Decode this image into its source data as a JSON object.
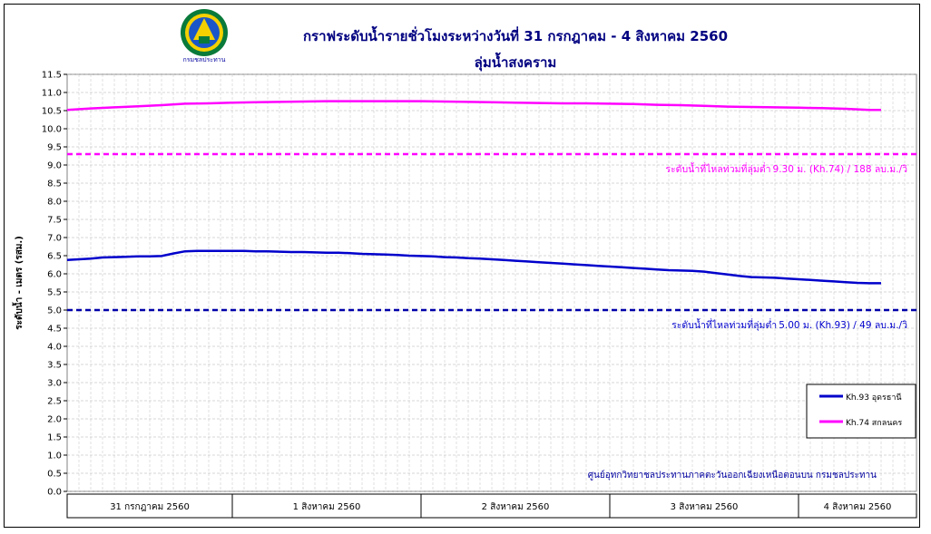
{
  "chart_data": {
    "type": "line",
    "title": "กราฟระดับน้ำรายชั่วโมงระหว่างวันที่  31 กรกฎาคม  - 4 สิงหาคม  2560",
    "subtitle": "ลุ่มน้ำสงคราม",
    "ylabel": "ระดับน้ำ - เมตร (รสม.)",
    "ylim": [
      0,
      11.5
    ],
    "yticks": [
      "0.0",
      "0.5",
      "1.0",
      "1.5",
      "2.0",
      "2.5",
      "3.0",
      "3.5",
      "4.0",
      "4.5",
      "5.0",
      "5.5",
      "6.0",
      "6.5",
      "7.0",
      "7.5",
      "8.0",
      "8.5",
      "9.0",
      "9.5",
      "10.0",
      "10.5",
      "11.0",
      "11.5"
    ],
    "grid": true,
    "legend_position": "right",
    "x_groups": [
      "31 กรกฎาคม  2560",
      "1 สิงหาคม 2560",
      "2 สิงหาคม 2560",
      "3 สิงหาคม 2560",
      "4 สิงหาคม 2560"
    ],
    "x_unit": "hour",
    "series": [
      {
        "name": "Kh.93 อุดรธานี",
        "color": "#0000cc",
        "points": [
          [
            0,
            6.38
          ],
          [
            1,
            6.4
          ],
          [
            2,
            6.42
          ],
          [
            3,
            6.45
          ],
          [
            4,
            6.46
          ],
          [
            5,
            6.47
          ],
          [
            6,
            6.48
          ],
          [
            7,
            6.48
          ],
          [
            8,
            6.49
          ],
          [
            9,
            6.56
          ],
          [
            10,
            6.62
          ],
          [
            11,
            6.63
          ],
          [
            12,
            6.63
          ],
          [
            13,
            6.63
          ],
          [
            14,
            6.63
          ],
          [
            15,
            6.63
          ],
          [
            16,
            6.62
          ],
          [
            17,
            6.62
          ],
          [
            18,
            6.61
          ],
          [
            19,
            6.6
          ],
          [
            20,
            6.6
          ],
          [
            21,
            6.59
          ],
          [
            22,
            6.58
          ],
          [
            23,
            6.58
          ],
          [
            24,
            6.57
          ],
          [
            25,
            6.55
          ],
          [
            26,
            6.54
          ],
          [
            27,
            6.53
          ],
          [
            28,
            6.52
          ],
          [
            29,
            6.5
          ],
          [
            30,
            6.49
          ],
          [
            31,
            6.48
          ],
          [
            32,
            6.46
          ],
          [
            33,
            6.45
          ],
          [
            34,
            6.43
          ],
          [
            35,
            6.42
          ],
          [
            36,
            6.4
          ],
          [
            37,
            6.38
          ],
          [
            38,
            6.36
          ],
          [
            39,
            6.34
          ],
          [
            40,
            6.32
          ],
          [
            41,
            6.3
          ],
          [
            42,
            6.28
          ],
          [
            43,
            6.26
          ],
          [
            44,
            6.24
          ],
          [
            45,
            6.22
          ],
          [
            46,
            6.2
          ],
          [
            47,
            6.18
          ],
          [
            48,
            6.16
          ],
          [
            49,
            6.14
          ],
          [
            50,
            6.12
          ],
          [
            51,
            6.1
          ],
          [
            52,
            6.09
          ],
          [
            53,
            6.08
          ],
          [
            54,
            6.06
          ],
          [
            55,
            6.02
          ],
          [
            56,
            5.98
          ],
          [
            57,
            5.94
          ],
          [
            58,
            5.91
          ],
          [
            59,
            5.9
          ],
          [
            60,
            5.89
          ],
          [
            61,
            5.87
          ],
          [
            62,
            5.85
          ],
          [
            63,
            5.83
          ],
          [
            64,
            5.81
          ],
          [
            65,
            5.79
          ],
          [
            66,
            5.77
          ],
          [
            67,
            5.75
          ],
          [
            68,
            5.74
          ],
          [
            69,
            5.74
          ]
        ]
      },
      {
        "name": "Kh.74 สกลนคร",
        "color": "#ff00ff",
        "points": [
          [
            0,
            10.52
          ],
          [
            2,
            10.56
          ],
          [
            4,
            10.59
          ],
          [
            6,
            10.62
          ],
          [
            8,
            10.65
          ],
          [
            10,
            10.69
          ],
          [
            12,
            10.7
          ],
          [
            14,
            10.72
          ],
          [
            16,
            10.73
          ],
          [
            18,
            10.74
          ],
          [
            20,
            10.75
          ],
          [
            22,
            10.76
          ],
          [
            24,
            10.76
          ],
          [
            26,
            10.76
          ],
          [
            28,
            10.76
          ],
          [
            30,
            10.76
          ],
          [
            32,
            10.75
          ],
          [
            34,
            10.74
          ],
          [
            36,
            10.73
          ],
          [
            38,
            10.72
          ],
          [
            40,
            10.71
          ],
          [
            42,
            10.7
          ],
          [
            44,
            10.7
          ],
          [
            46,
            10.69
          ],
          [
            48,
            10.68
          ],
          [
            50,
            10.66
          ],
          [
            52,
            10.65
          ],
          [
            54,
            10.63
          ],
          [
            56,
            10.61
          ],
          [
            58,
            10.6
          ],
          [
            60,
            10.59
          ],
          [
            62,
            10.58
          ],
          [
            64,
            10.57
          ],
          [
            66,
            10.55
          ],
          [
            68,
            10.52
          ],
          [
            69,
            10.52
          ]
        ]
      }
    ],
    "reference_lines": [
      {
        "value": 9.3,
        "color": "#ff00ff",
        "label_prefix": "ระดับน้ำที่ไหลท่วมที่ลุ่มต่ำ",
        "label_main": "9.30 ม. (Kh.74) / 188 ลบ.ม./วิ"
      },
      {
        "value": 5.0,
        "color": "#0000aa",
        "label_prefix": "ระดับน้ำที่ไหลท่วมที่ลุ่มต่ำ",
        "label_main": "5.00 ม. (Kh.93) / 49 ลบ.ม./วิ"
      }
    ],
    "legend": [
      {
        "label": "Kh.93 อุดรธานี",
        "color": "#0000cc"
      },
      {
        "label": "Kh.74 สกลนคร",
        "color": "#ff00ff"
      }
    ],
    "credit": "ศูนย์อุทกวิทยาชลประทานภาคตะวันออกเฉียงเหนือตอนบน กรมชลประทาน"
  },
  "logo": {
    "caption": "กรมชลประทาน"
  }
}
